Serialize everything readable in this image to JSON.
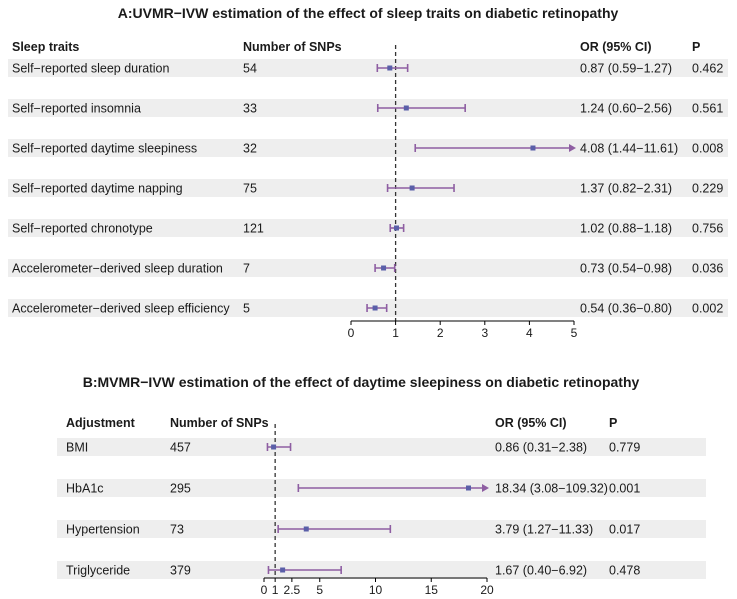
{
  "style": {
    "row_band": "#eeeeee",
    "ci_color": "#8e5ea2",
    "point_color": "#5a5fa8",
    "text_color": "#1a1a1a",
    "ref_line": "#333333"
  },
  "chart_data": [
    {
      "type": "forest",
      "title": "A:UVMR−IVW estimation of the effect of sleep traits on diabetic retinopathy",
      "columns": {
        "label": "Sleep traits",
        "nsnp": "Number of SNPs",
        "or": "OR (95% CI)",
        "p": "P"
      },
      "xlim": [
        0,
        5
      ],
      "reference": 1,
      "ticks": [
        0,
        1,
        2,
        3,
        4,
        5
      ],
      "tick_labels": [
        "0",
        "1",
        "2",
        "3",
        "4",
        "5"
      ],
      "rows": [
        {
          "label": "Self−reported sleep duration",
          "nsnp": "54",
          "or": 0.87,
          "lo": 0.59,
          "hi": 1.27,
          "or_text": "0.87 (0.59−1.27)",
          "p": "0.462"
        },
        {
          "label": "Self−reported insomnia",
          "nsnp": "33",
          "or": 1.24,
          "lo": 0.6,
          "hi": 2.56,
          "or_text": "1.24 (0.60−2.56)",
          "p": "0.561"
        },
        {
          "label": "Self−reported daytime sleepiness",
          "nsnp": "32",
          "or": 4.08,
          "lo": 1.44,
          "hi": 11.61,
          "or_text": "4.08 (1.44−11.61)",
          "p": "0.008"
        },
        {
          "label": "Self−reported daytime napping",
          "nsnp": "75",
          "or": 1.37,
          "lo": 0.82,
          "hi": 2.31,
          "or_text": "1.37 (0.82−2.31)",
          "p": "0.229"
        },
        {
          "label": "Self−reported chronotype",
          "nsnp": "121",
          "or": 1.02,
          "lo": 0.88,
          "hi": 1.18,
          "or_text": "1.02 (0.88−1.18)",
          "p": "0.756"
        },
        {
          "label": "Accelerometer−derived sleep duration",
          "nsnp": "7",
          "or": 0.73,
          "lo": 0.54,
          "hi": 0.98,
          "or_text": "0.73 (0.54−0.98)",
          "p": "0.036"
        },
        {
          "label": "Accelerometer−derived sleep efficiency",
          "nsnp": "5",
          "or": 0.54,
          "lo": 0.36,
          "hi": 0.8,
          "or_text": "0.54 (0.36−0.80)",
          "p": "0.002"
        }
      ]
    },
    {
      "type": "forest",
      "title": "B:MVMR−IVW estimation of the effect of daytime sleepiness on diabetic retinopathy",
      "columns": {
        "label": "Adjustment",
        "nsnp": "Number of SNPs",
        "or": "OR (95% CI)",
        "p": "P"
      },
      "xlim": [
        0,
        20
      ],
      "reference": 1,
      "ticks": [
        0,
        1,
        2.5,
        5,
        10,
        15,
        20
      ],
      "tick_labels": [
        "0",
        "1",
        "2.5",
        "5",
        "10",
        "15",
        "20"
      ],
      "rows": [
        {
          "label": "BMI",
          "nsnp": "457",
          "or": 0.86,
          "lo": 0.31,
          "hi": 2.38,
          "or_text": "0.86 (0.31−2.38)",
          "p": "0.779"
        },
        {
          "label": "HbA1c",
          "nsnp": "295",
          "or": 18.34,
          "lo": 3.08,
          "hi": 109.32,
          "or_text": "18.34 (3.08−109.32)",
          "p": "0.001"
        },
        {
          "label": "Hypertension",
          "nsnp": "73",
          "or": 3.79,
          "lo": 1.27,
          "hi": 11.33,
          "or_text": "3.79 (1.27−11.33)",
          "p": "0.017"
        },
        {
          "label": "Triglyceride",
          "nsnp": "379",
          "or": 1.67,
          "lo": 0.4,
          "hi": 6.92,
          "or_text": "1.67 (0.40−6.92)",
          "p": "0.478"
        }
      ]
    }
  ]
}
